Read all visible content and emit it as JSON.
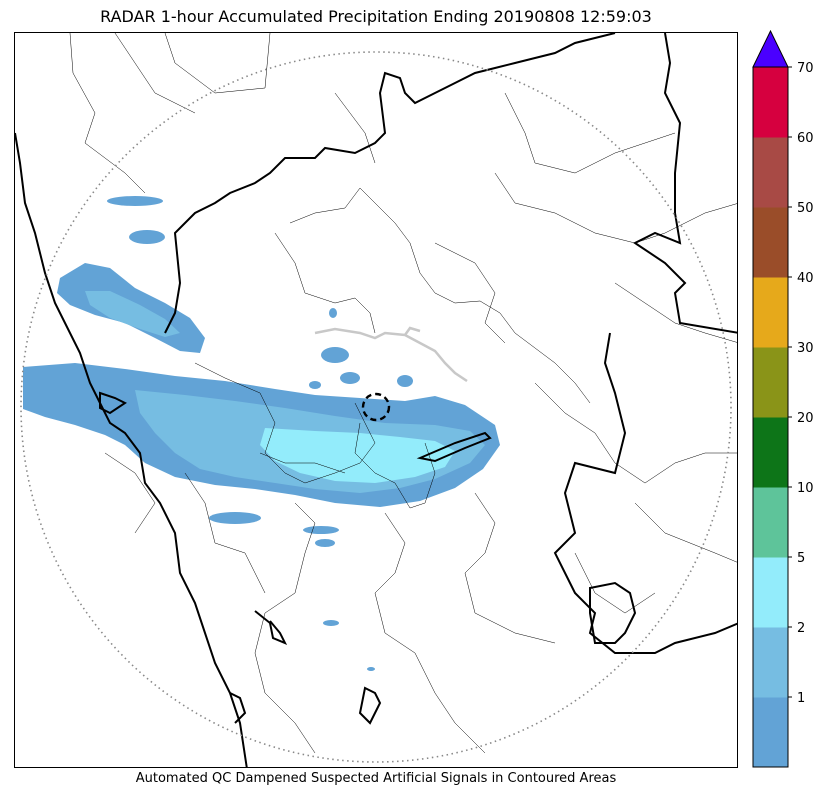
{
  "title": "RADAR 1-hour Accumulated Precipitation Ending 20190808 12:59:03",
  "caption": "Automated QC Dampened Suspected Artificial Signals in Contoured Areas",
  "colorbar": {
    "bins": [
      {
        "from": 0,
        "to": 1,
        "color": "#62a3d6"
      },
      {
        "from": 1,
        "to": 2,
        "color": "#76bde2"
      },
      {
        "from": 2,
        "to": 5,
        "color": "#93ecfb"
      },
      {
        "from": 5,
        "to": 10,
        "color": "#5ec49a"
      },
      {
        "from": 10,
        "to": 20,
        "color": "#0d7518"
      },
      {
        "from": 20,
        "to": 30,
        "color": "#8a9418"
      },
      {
        "from": 30,
        "to": 40,
        "color": "#e6a91b"
      },
      {
        "from": 40,
        "to": 50,
        "color": "#9a4d29"
      },
      {
        "from": 50,
        "to": 60,
        "color": "#a84a45"
      },
      {
        "from": 60,
        "to": 70,
        "color": "#d6003f"
      }
    ],
    "tick_labels": [
      "1",
      "2",
      "5",
      "10",
      "20",
      "30",
      "40",
      "50",
      "60",
      "70"
    ],
    "overflow_color": "#4a00ff"
  },
  "legend_colors": {
    "light": "#62a3d6",
    "medium": "#76bde2",
    "heavy": "#93ecfb",
    "coast": "#000000",
    "district_border": "#000000",
    "range_ring": "#888888",
    "qc_contour": "#c8c8c8"
  }
}
